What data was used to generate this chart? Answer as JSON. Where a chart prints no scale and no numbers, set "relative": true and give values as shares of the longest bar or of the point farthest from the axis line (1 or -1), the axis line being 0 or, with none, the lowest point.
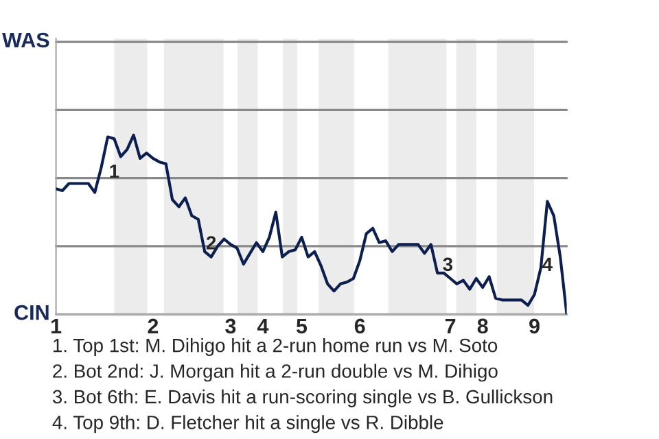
{
  "chart_data": {
    "type": "line",
    "relative": true,
    "categories": [
      "1",
      null,
      null,
      null,
      null,
      null,
      null,
      null,
      null,
      null,
      null,
      null,
      null,
      null,
      null,
      "2",
      null,
      null,
      null,
      null,
      null,
      null,
      null,
      null,
      null,
      null,
      null,
      "3",
      null,
      null,
      null,
      null,
      "4",
      null,
      null,
      null,
      null,
      null,
      "5",
      null,
      null,
      null,
      null,
      null,
      null,
      null,
      null,
      "6",
      null,
      null,
      null,
      null,
      null,
      null,
      null,
      null,
      null,
      null,
      null,
      null,
      null,
      "7",
      null,
      null,
      null,
      null,
      "8",
      null,
      null,
      null,
      null,
      null,
      null,
      null,
      "9",
      null,
      null,
      null,
      null,
      null
    ],
    "series": [
      {
        "color": "#0d1f4f",
        "values": [
          0.7,
          0.69,
          0.73,
          0.73,
          0.73,
          0.73,
          0.68,
          0.82,
          0.99,
          0.98,
          0.88,
          0.92,
          1,
          0.87,
          0.9,
          0.87,
          0.85,
          0.84,
          0.64,
          0.6,
          0.65,
          0.55,
          0.53,
          0.35,
          0.32,
          0.38,
          0.42,
          0.39,
          0.37,
          0.28,
          0.34,
          0.4,
          0.35,
          0.43,
          0.57,
          0.32,
          0.35,
          0.36,
          0.43,
          0.32,
          0.35,
          0.27,
          0.17,
          0.13,
          0.17,
          0.18,
          0.2,
          0.3,
          0.45,
          0.48,
          0.4,
          0.41,
          0.35,
          0.39,
          0.39,
          0.39,
          0.39,
          0.34,
          0.39,
          0.23,
          0.23,
          0.2,
          0.17,
          0.19,
          0.14,
          0.2,
          0.15,
          0.21,
          0.09,
          0.08,
          0.08,
          0.08,
          0.08,
          0.05,
          0.11,
          0.26,
          0.63,
          0.55,
          0.32,
          0
        ]
      }
    ],
    "ref_lines": [
      {
        "axis": "y",
        "value": 0,
        "label": "CIN",
        "color": "#aaaaaa"
      },
      {
        "axis": "y",
        "value": 0.38,
        "color": "#888888"
      },
      {
        "axis": "y",
        "value": 0.76,
        "color": "#888888"
      },
      {
        "axis": "y",
        "value": 1.14,
        "color": "#888888"
      },
      {
        "axis": "y",
        "value": 1.52,
        "label": "WAS",
        "color": "#888888"
      }
    ],
    "annotations": [
      "1",
      "2",
      "3",
      "4",
      "1. Top 1st: M. Dihigo hit a 2-run home run vs M. Soto",
      "2. Bot 2nd: J. Morgan hit a 2-run double vs M. Dihigo",
      "3. Bot 6th: E. Davis hit a run-scoring single vs B. Gullickson",
      "4. Top 9th: D. Fletcher hit a single vs R. Dibble"
    ]
  }
}
